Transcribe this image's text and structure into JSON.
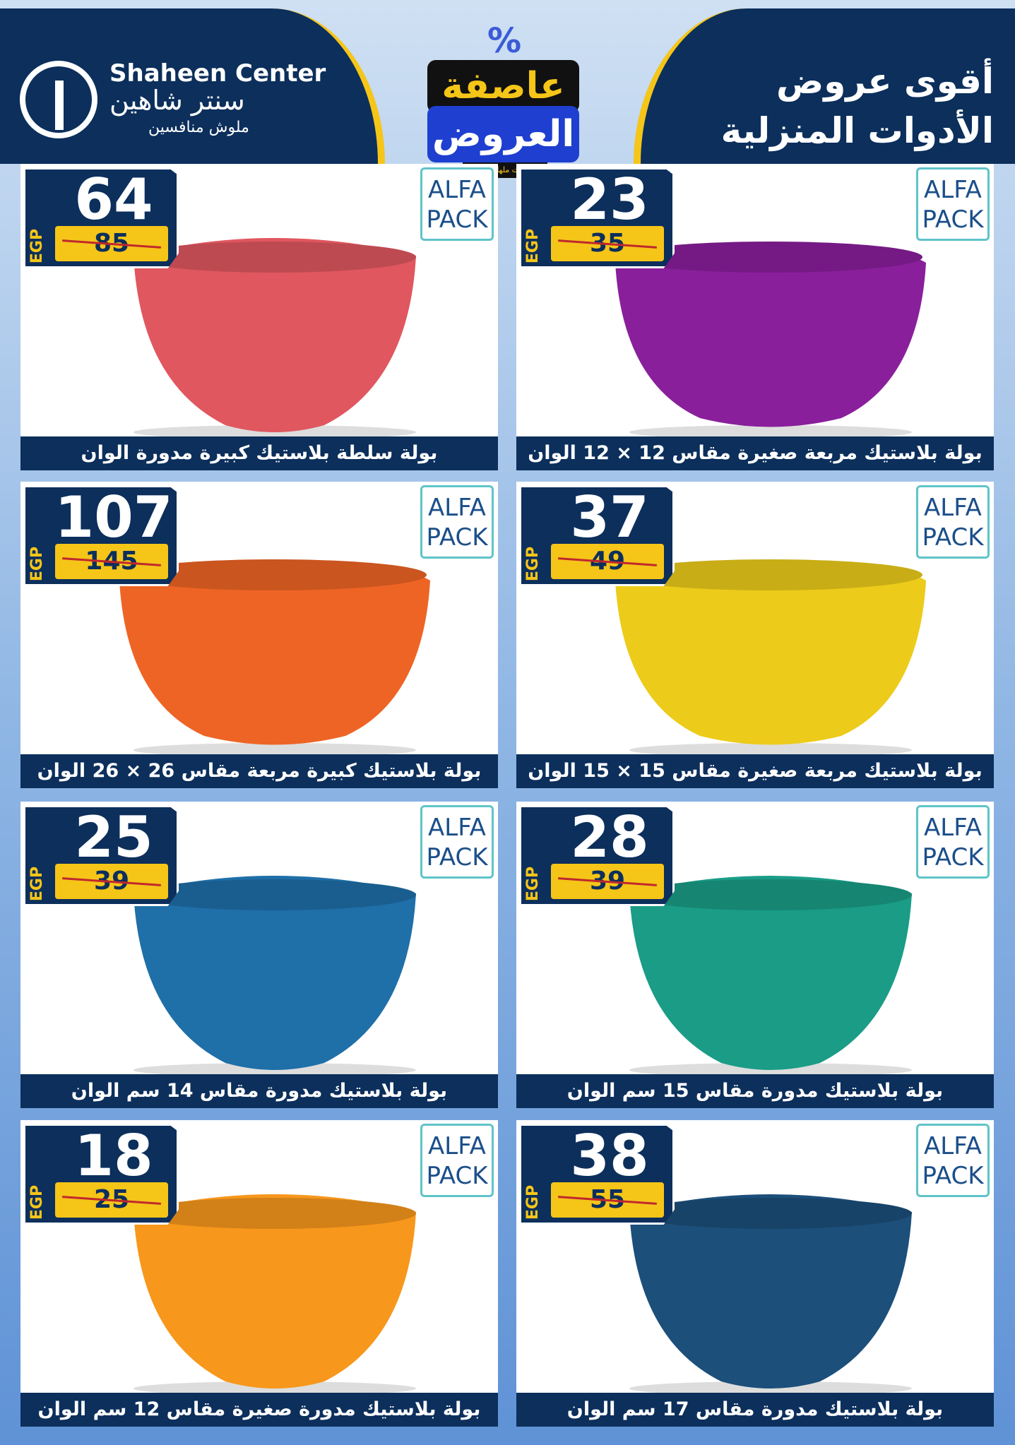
{
  "header": {
    "brand_en": "Shaheen Center",
    "brand_ar": "سنتر شاهين",
    "brand_tagline": "ملوش منافسين",
    "campaign_line1": "عاصفة",
    "campaign_line2": "العروض",
    "campaign_note": "خصومات ملهاش حدود",
    "campaign_symbol": "%",
    "headline_line1": "أقوى عروض",
    "headline_line2": "الأدوات المنزلية"
  },
  "currency": "EGP",
  "brand_logo": {
    "line1": "ALFA",
    "line2": "PACK"
  },
  "colors": {
    "navy": "#0c2f5c",
    "yellow": "#f5c518",
    "strike": "#c0282d"
  },
  "products": [
    {
      "price": "64",
      "old_price": "85",
      "name": "بولة سلطة بلاستيك كبيرة مدورة الوان",
      "color": "#e0575f"
    },
    {
      "price": "23",
      "old_price": "35",
      "name": "بولة بلاستيك مربعة صغيرة مقاس 12 × 12 الوان",
      "color": "#8a1f9c"
    },
    {
      "price": "107",
      "old_price": "145",
      "name": "بولة بلاستيك كبيرة مربعة مقاس 26 × 26 الوان",
      "color": "#ee6424"
    },
    {
      "price": "37",
      "old_price": "49",
      "name": "بولة بلاستيك مربعة صغيرة مقاس 15 × 15 الوان",
      "color": "#eccb1a"
    },
    {
      "price": "25",
      "old_price": "39",
      "name": "بولة بلاستيك مدورة مقاس 14 سم الوان",
      "color": "#1f6fa8"
    },
    {
      "price": "28",
      "old_price": "39",
      "name": "بولة بلاستيك مدورة مقاس 15 سم الوان",
      "color": "#1a9c86"
    },
    {
      "price": "18",
      "old_price": "25",
      "name": "بولة بلاستيك مدورة صغيرة مقاس 12 سم الوان",
      "color": "#f7971c"
    },
    {
      "price": "38",
      "old_price": "55",
      "name": "بولة بلاستيك مدورة مقاس 17 سم الوان",
      "color": "#1c4f7a"
    }
  ]
}
